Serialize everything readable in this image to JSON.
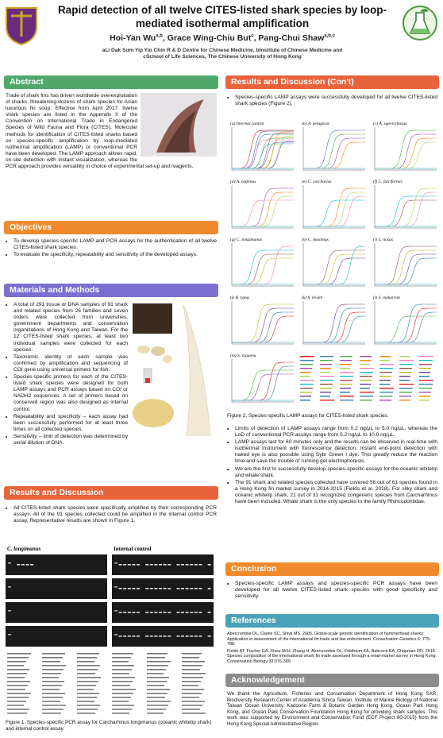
{
  "header": {
    "title": "Rapid detection of all twelve CITES-listed shark species by loop-mediated isothermal amplification",
    "authors": [
      {
        "name": "Hoi-Yan Wu",
        "sup": "a,b"
      },
      {
        "name": ", Grace Wing-Chiu But",
        "sup": "c"
      },
      {
        "name": ", Pang-Chui Shaw",
        "sup": "a,b,c"
      }
    ],
    "affiliations": [
      "aLi Dak Sum Yip Yio Chin R & D Centre for Chinese Medicine, bInstitute of Chinese Medicine and",
      "cSchool of Life Sciences, The Chinese University of Hong Kong"
    ]
  },
  "abstract": {
    "heading": "Abstract",
    "text": "Trade of shark fins has driven worldwide overexploitation of sharks, threatening dozens of shark species for Asian luxurious fin soup. Effective from April 2017, twelve shark species are listed in the Appendix II of the Convention on International Trade in Endangered Species of Wild Fauna and Flora (CITES). Molecular methods for identification of CITES-listed sharks based on species-specific amplification by loop-mediated isothermal amplification (LAMP) or conventional PCR have been developed. The LAMP approach allows rapid, on-site detection with instant visualization, whereas the PCR approach provides versatility in choice of experimental set-up and reagents."
  },
  "objectives": {
    "heading": "Objectives",
    "bullets": [
      "To develop species-specific LAMP and PCR assays for the authentication of all twelve CITES-listed shark species.",
      "To evaluate the specificity, repeatability and sensitivity of the developed assays."
    ]
  },
  "methods": {
    "heading": "Materials and Methods",
    "bullets": [
      "A total of 291 tissue or DNA samples of 91 shark and related species from 26 families and seven orders were collected from universities, government departments and conservation organizations of Hong Kong and Taiwan. For the 12 CITES-listed shark species, at least two individual samples were collected for each species.",
      "Taxonomic identity of each sample was confirmed by amplification and sequencing of COI gene using universal primers for fish.",
      "Species-specific primers for each of the CITES-listed shark species were designed for both LAMP assays and PCR assays based on COI or NADH2 sequences. A set of primers based on conserved region was also designed as internal control.",
      "Repeatability and specificity – each assay had been successfully performed for at least three times on all collected species.",
      "Sensitivity – limit of detection was determined by serial dilution of DNA."
    ]
  },
  "results": {
    "heading": "Results and Discussion",
    "bullets": [
      "All CITES-listed shark species were specifically amplified by their corresponding PCR assays. All of the 91 species collected could be amplified in the internal control PCR assay. Representative results are shown in Figure 1."
    ],
    "figure1": {
      "panels": [
        "C. longimanus",
        "Internal control"
      ],
      "caption": "Figure 1. Species-specific PCR assay for Carcharhinus longimanus (oceanic whitetip shark) and internal control assay."
    }
  },
  "results_cont": {
    "heading": "Results and Discussion (Con't)",
    "bullets_top": [
      "Species-specific LAMP assays were successfully developed for all twelve CITES-listed shark species (Figure 2)."
    ],
    "figure2": {
      "panels": [
        "(a) Internal control",
        "(b) A. pelagicus",
        "(c) A. superciliosus",
        "(d) A. vulpinus",
        "(e) C. carcharias",
        "(f) C. falciformis",
        "(g) C. longimanus",
        "(h) C. maximus",
        "(i) L. nasus",
        "(j) R. typus",
        "(k) S. lewini",
        "(l) S. mokarran",
        "(m) S. zygaena"
      ],
      "caption": "Figure 2. Species-specific LAMP assays for CITES-listed shark species."
    },
    "bullets": [
      "Limits of detection of LAMP assays range from 0.2 ng/µL to 5.0 ng/µL, whereas the LoD of conventional PCR assays range from 0.2 ng/µL to 10.0 ng/µL.",
      "LAMP assays last for 60 minutes only and the results can be observed in real-time with isothermal instrument with fluorescence detection. Instant end-point detection with naked eye is also possible using Sybr Green I dye. This greatly reduce the reaction time and save the trouble of running gel electrophoresis.",
      "We are the first to successfully develop species-specific assays for the oceanic whitetip and whale shark.",
      "The 91 shark and related species collected have covered 56 out of 61 species found in a Hong Kong fin market survey in 2014-2015 (Fields et al. 2018). For silky shark and oceanic whitetip shark, 21 out of 31 recognized congeneric species from Carcharhinus have been included. Whale shark is the only species in the family Rhincodontidae."
    ]
  },
  "conclusion": {
    "heading": "Conclusion",
    "bullets": [
      "Species-specific LAMP assays and species-specific PCR assays have been developed for all twelve CITES-listed shark species with good specificity and sensitivity."
    ]
  },
  "references": {
    "heading": "References",
    "items": [
      "Abercrombie DL, Clarke SC, Shivji MS. 2005. Global-scale genetic identification of hammerhead sharks: Application to assessment of the international fin trade and law enforcement. Conservation Genetics 6: 775-788.",
      "Fields AT, Fischer GA, Shea SKH, Zhang H, Abercrombie DL, Feldheim KA, Babcock EA, Chapman DD. 2018. Species composition of the international shark fin trade assessed through a retail-market survey in Hong Kong. Conservation Biology 32:376-389."
    ]
  },
  "acknowledgement": {
    "heading": "Acknowledgement",
    "text": "We thank the Agriculture, Fisheries and Conservation Department of Hong Kong SAR, Biodiversity Research Center of Academia Sinica Taiwan, Institute of Marine Biology of National Taiwan Ocean University, Kadoorie Farm & Botanic Garden Hong Kong, Ocean Park Hong Kong, and Ocean Park Conservation Foundation Hong Kong for providing shark samples. This work was supported by Environment and Conservation Fund (ECF Project 80-2015) from the Hong Kong Special Administrative Region."
  }
}
